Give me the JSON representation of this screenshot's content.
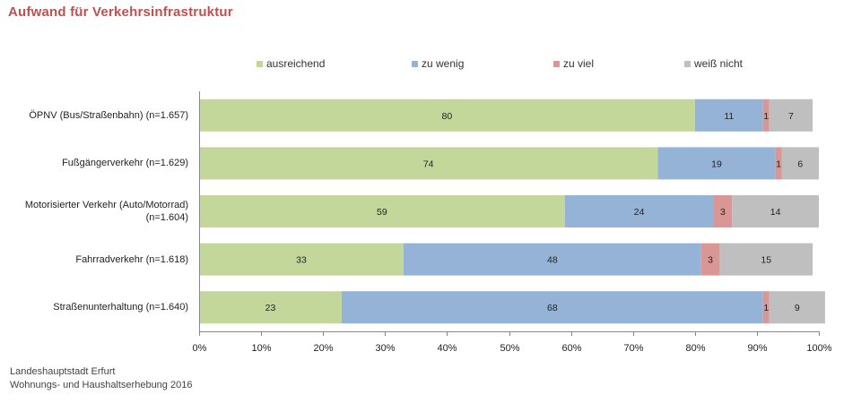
{
  "title": "Aufwand für Verkehrsinfrastruktur",
  "source_line1": "Landeshauptstadt Erfurt",
  "source_line2": "Wohnungs- und Haushaltserhebung 2016",
  "colors": {
    "ausreichend": "#c4d79b",
    "zu_wenig": "#95b3d7",
    "zu_viel": "#d99694",
    "weiss_nicht": "#bfbfbf",
    "title": "#c0504d"
  },
  "chart_data": {
    "type": "bar",
    "orientation": "horizontal",
    "stacked": true,
    "percent": true,
    "title": "Aufwand für Verkehrsinfrastruktur",
    "categories": [
      "ÖPNV (Bus/Straßenbahn) (n=1.657)",
      "Fußgängerverkehr (n=1.629)",
      "Motorisierter Verkehr (Auto/Motorrad) (n=1.604)",
      "Fahrradverkehr (n=1.618)",
      "Straßenunterhaltung (n=1.640)"
    ],
    "series": [
      {
        "name": "ausreichend",
        "values": [
          80,
          74,
          59,
          33,
          23
        ]
      },
      {
        "name": "zu wenig",
        "values": [
          11,
          19,
          24,
          48,
          68
        ]
      },
      {
        "name": "zu viel",
        "values": [
          1,
          1,
          3,
          3,
          1
        ]
      },
      {
        "name": "weiß nicht",
        "values": [
          7,
          6,
          14,
          15,
          9
        ]
      }
    ],
    "xlim": [
      0,
      100
    ],
    "x_ticks": [
      "0%",
      "10%",
      "20%",
      "30%",
      "40%",
      "50%",
      "60%",
      "70%",
      "80%",
      "90%",
      "100%"
    ],
    "legend_position": "top",
    "grid": false
  }
}
